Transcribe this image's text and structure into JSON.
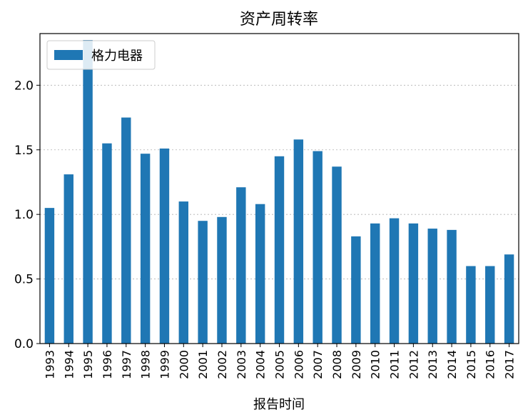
{
  "chart_data": {
    "type": "bar",
    "title": "资产周转率",
    "xlabel": "报告时间",
    "ylabel": "",
    "ylim": [
      0,
      2.4
    ],
    "yticks": [
      0.0,
      0.5,
      1.0,
      1.5,
      2.0
    ],
    "ytick_labels": [
      "0.0",
      "0.5",
      "1.0",
      "1.5",
      "2.0"
    ],
    "grid": true,
    "legend_position": "top-left",
    "categories": [
      "1993",
      "1994",
      "1995",
      "1996",
      "1997",
      "1998",
      "1999",
      "2000",
      "2001",
      "2002",
      "2003",
      "2004",
      "2005",
      "2006",
      "2007",
      "2008",
      "2009",
      "2010",
      "2011",
      "2012",
      "2013",
      "2014",
      "2015",
      "2016",
      "2017"
    ],
    "series": [
      {
        "name": "格力电器",
        "color": "#1f77b4",
        "values": [
          1.05,
          1.31,
          2.35,
          1.55,
          1.75,
          1.47,
          1.51,
          1.1,
          0.95,
          0.98,
          1.21,
          1.08,
          1.45,
          1.58,
          1.49,
          1.37,
          0.83,
          0.93,
          0.97,
          0.93,
          0.89,
          0.88,
          0.6,
          0.6,
          0.69
        ]
      }
    ]
  }
}
